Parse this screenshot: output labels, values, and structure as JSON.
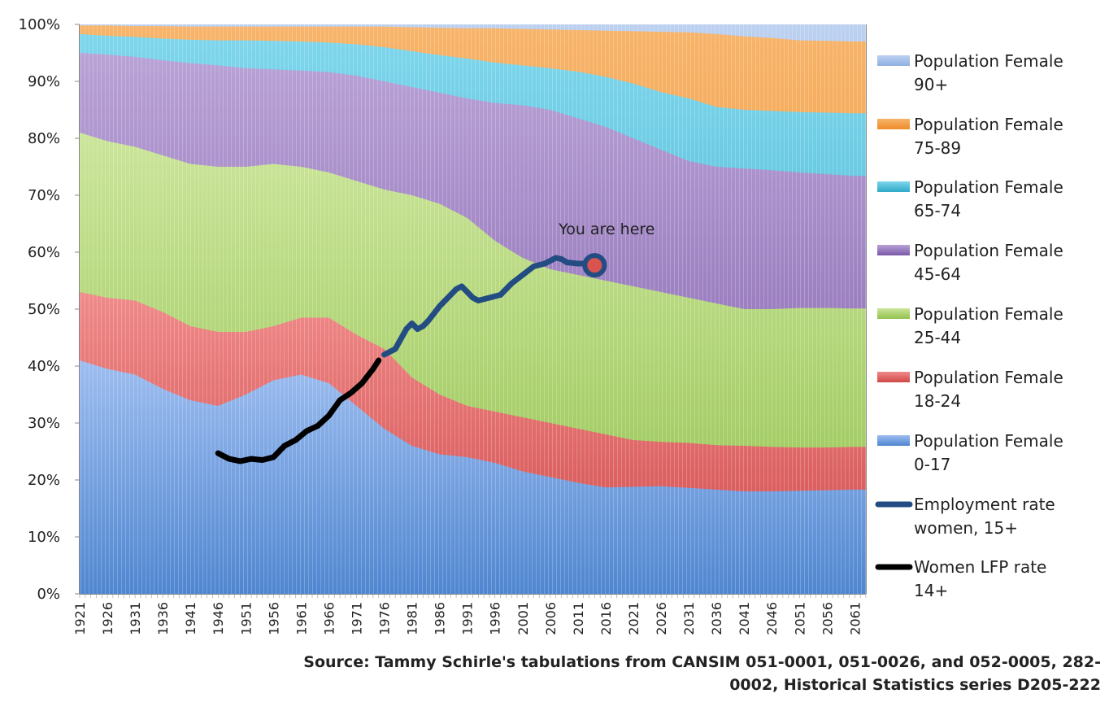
{
  "chart_data": {
    "type": "area",
    "stacked_percent": true,
    "ylim": [
      0,
      100
    ],
    "y_ticks": [
      "0%",
      "10%",
      "20%",
      "30%",
      "40%",
      "50%",
      "60%",
      "70%",
      "80%",
      "90%",
      "100%"
    ],
    "x_ticks": [
      "1921",
      "1926",
      "1931",
      "1936",
      "1941",
      "1946",
      "1951",
      "1956",
      "1961",
      "1966",
      "1971",
      "1976",
      "1981",
      "1986",
      "1991",
      "1996",
      "2001",
      "2006",
      "2011",
      "2016",
      "2021",
      "2026",
      "2031",
      "2036",
      "2041",
      "2046",
      "2051",
      "2056",
      "2061"
    ],
    "x_range": [
      1921,
      2063
    ],
    "legend_position": "right",
    "cumulative_boundaries": {
      "years": [
        1921,
        1926,
        1931,
        1936,
        1941,
        1946,
        1951,
        1956,
        1961,
        1966,
        1971,
        1976,
        1981,
        1986,
        1991,
        1996,
        2001,
        2006,
        2011,
        2016,
        2021,
        2026,
        2031,
        2036,
        2041,
        2046,
        2051,
        2056,
        2061,
        2063
      ],
      "0-17": [
        41,
        39.5,
        38.5,
        36,
        34,
        33,
        35,
        37.5,
        38.5,
        37,
        33,
        29,
        26,
        24.5,
        24,
        23,
        21.5,
        20.5,
        19.5,
        18.7,
        18.8,
        18.9,
        18.6,
        18.3,
        18,
        18,
        18.1,
        18.2,
        18.3,
        18.3
      ],
      "18-24": [
        53,
        52,
        51.5,
        49.5,
        47,
        46,
        46,
        47,
        48.5,
        48.5,
        45.5,
        43,
        38,
        35,
        33,
        32,
        31,
        30,
        29,
        28,
        27,
        26.7,
        26.5,
        26.1,
        26,
        25.8,
        25.7,
        25.7,
        25.8,
        25.8
      ],
      "25-44": [
        81,
        79.5,
        78.5,
        77,
        75.5,
        75,
        75,
        75.5,
        75,
        74,
        72.5,
        71,
        70,
        68.5,
        66,
        62,
        59,
        57,
        56,
        55,
        54,
        53,
        52,
        51,
        50,
        50,
        50.2,
        50.2,
        50.1,
        50.1
      ],
      "45-64": [
        95,
        94.7,
        94.3,
        93.7,
        93.2,
        92.8,
        92.3,
        92.1,
        91.9,
        91.6,
        91,
        90,
        89,
        88,
        87,
        86.2,
        85.8,
        85,
        83.5,
        82,
        80,
        78,
        76,
        75,
        74.7,
        74.4,
        74,
        73.7,
        73.4,
        73.4
      ],
      "65-74": [
        98.3,
        98,
        97.8,
        97.5,
        97.3,
        97.2,
        97.2,
        97.1,
        97,
        96.8,
        96.5,
        96,
        95.3,
        94.6,
        94,
        93.3,
        92.8,
        92.3,
        91.7,
        90.8,
        89.6,
        88.1,
        87,
        85.5,
        85,
        84.8,
        84.6,
        84.5,
        84.4,
        84.4
      ],
      "75-89": [
        99.8,
        99.8,
        99.7,
        99.7,
        99.6,
        99.6,
        99.6,
        99.6,
        99.6,
        99.6,
        99.6,
        99.6,
        99.5,
        99.4,
        99.3,
        99.3,
        99.2,
        99.1,
        99,
        98.9,
        98.8,
        98.7,
        98.6,
        98.3,
        97.9,
        97.6,
        97.2,
        97.1,
        97,
        97
      ],
      "90+": [
        100,
        100,
        100,
        100,
        100,
        100,
        100,
        100,
        100,
        100,
        100,
        100,
        100,
        100,
        100,
        100,
        100,
        100,
        100,
        100,
        100,
        100,
        100,
        100,
        100,
        100,
        100,
        100,
        100,
        100
      ]
    },
    "series": [
      {
        "name": "Population Female 90+",
        "color": "#a8bfe6"
      },
      {
        "name": "Population Female 75-89",
        "color": "#f39a3c"
      },
      {
        "name": "Population Female 65-74",
        "color": "#4fc2dd"
      },
      {
        "name": "Population Female 45-64",
        "color": "#9677bd"
      },
      {
        "name": "Population Female 25-44",
        "color": "#b1d670"
      },
      {
        "name": "Population Female 18-24",
        "color": "#e06566"
      },
      {
        "name": "Population Female 0-17",
        "color": "#7aa6e0"
      },
      {
        "name": "Employment rate women, 15+",
        "color": "#234c82",
        "x": [
          1976,
          1978,
          1980,
          1981,
          1982,
          1983,
          1984,
          1986,
          1988,
          1989,
          1990,
          1991,
          1992,
          1993,
          1995,
          1997,
          1999,
          2001,
          2003,
          2005,
          2007,
          2008,
          2009,
          2011,
          2013,
          2014
        ],
        "y": [
          42,
          43,
          46.5,
          47.5,
          46.5,
          47,
          48,
          50.5,
          52.5,
          53.5,
          54,
          53,
          52,
          51.5,
          52,
          52.5,
          54.5,
          56,
          57.5,
          58,
          59,
          58.8,
          58.2,
          58,
          58,
          57.7
        ]
      },
      {
        "name": "Women LFP rate 14+",
        "color": "#000000",
        "x": [
          1946,
          1948,
          1950,
          1952,
          1954,
          1956,
          1958,
          1960,
          1962,
          1964,
          1966,
          1968,
          1970,
          1972,
          1974,
          1975
        ],
        "y": [
          24.7,
          23.7,
          23.3,
          23.7,
          23.5,
          24,
          26,
          27,
          28.6,
          29.5,
          31.3,
          34,
          35.3,
          37,
          39.5,
          41
        ]
      }
    ],
    "annotations": [
      {
        "text": "You are here",
        "year": 2014,
        "value": 57.7
      }
    ],
    "source": "Source: Tammy Schirle's tabulations from CANSIM 051-0001, 051-0026, and 052-0005, 282-0002, Historical Statistics series D205-222"
  }
}
